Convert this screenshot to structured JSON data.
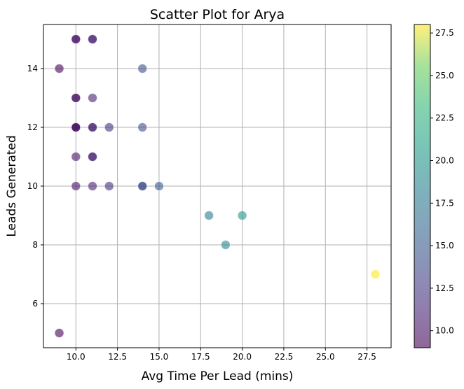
{
  "chart_data": {
    "type": "scatter",
    "title": "Scatter Plot for Arya",
    "xlabel": "Avg Time Per Lead (mins)",
    "ylabel": "Leads Generated",
    "xlim": [
      8.05,
      28.95
    ],
    "ylim": [
      4.5,
      15.5
    ],
    "xticks": [
      10.0,
      12.5,
      15.0,
      17.5,
      20.0,
      22.5,
      25.0,
      27.5
    ],
    "xtick_labels": [
      "10.0",
      "12.5",
      "15.0",
      "17.5",
      "20.0",
      "22.5",
      "25.0",
      "27.5"
    ],
    "yticks": [
      6,
      8,
      10,
      12,
      14
    ],
    "ytick_labels": [
      "6",
      "8",
      "10",
      "12",
      "14"
    ],
    "grid": true,
    "colormap": "viridis",
    "point_alpha": 0.6,
    "colorbar": {
      "min": 9,
      "max": 28,
      "ticks": [
        10.0,
        12.5,
        15.0,
        17.5,
        20.0,
        22.5,
        25.0,
        27.5
      ],
      "tick_labels": [
        "10.0",
        "12.5",
        "15.0",
        "17.5",
        "20.0",
        "22.5",
        "25.0",
        "27.5"
      ]
    },
    "points": [
      {
        "x": 9,
        "y": 14
      },
      {
        "x": 9,
        "y": 5
      },
      {
        "x": 10,
        "y": 15
      },
      {
        "x": 10,
        "y": 15
      },
      {
        "x": 10,
        "y": 13
      },
      {
        "x": 10,
        "y": 13
      },
      {
        "x": 10,
        "y": 12
      },
      {
        "x": 10,
        "y": 12
      },
      {
        "x": 10,
        "y": 12
      },
      {
        "x": 10,
        "y": 11
      },
      {
        "x": 10,
        "y": 10
      },
      {
        "x": 11,
        "y": 15
      },
      {
        "x": 11,
        "y": 15
      },
      {
        "x": 11,
        "y": 13
      },
      {
        "x": 11,
        "y": 12
      },
      {
        "x": 11,
        "y": 12
      },
      {
        "x": 11,
        "y": 11
      },
      {
        "x": 11,
        "y": 11
      },
      {
        "x": 11,
        "y": 10
      },
      {
        "x": 12,
        "y": 12
      },
      {
        "x": 12,
        "y": 10
      },
      {
        "x": 14,
        "y": 14
      },
      {
        "x": 14,
        "y": 12
      },
      {
        "x": 14,
        "y": 10
      },
      {
        "x": 14,
        "y": 10
      },
      {
        "x": 15,
        "y": 10
      },
      {
        "x": 18,
        "y": 9
      },
      {
        "x": 19,
        "y": 8
      },
      {
        "x": 20,
        "y": 9
      },
      {
        "x": 28,
        "y": 7
      }
    ]
  }
}
